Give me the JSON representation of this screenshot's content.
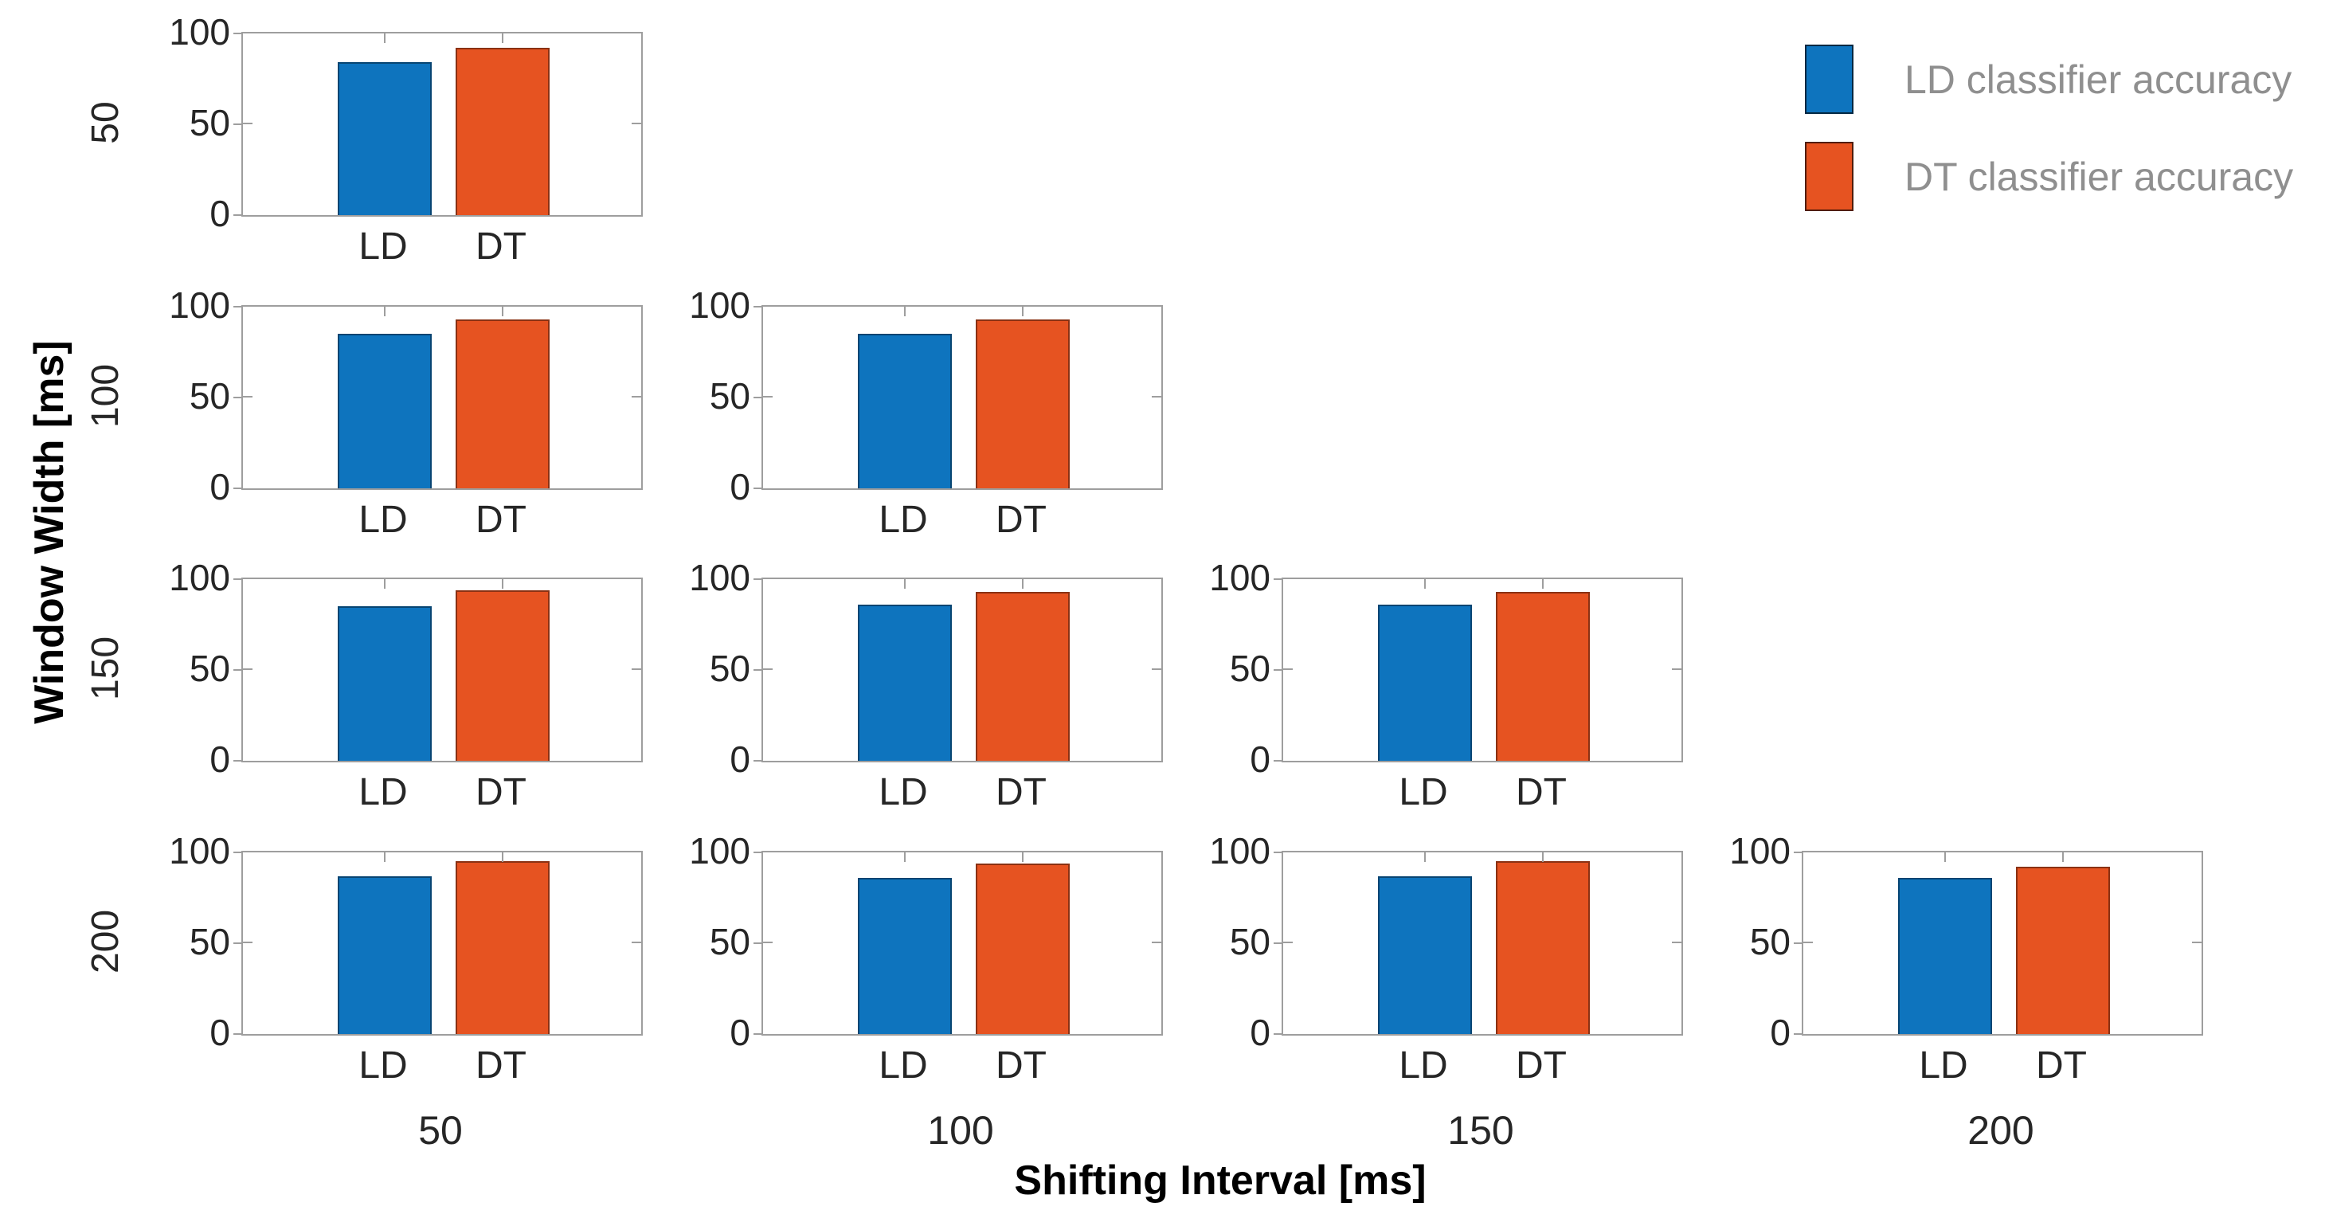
{
  "colors": {
    "ld_bar": "#0e74be",
    "dt_bar": "#e65321",
    "axis_line": "#9e9e9e",
    "tick_text": "#262626",
    "axis_title_text": "#000000",
    "legend_text": "#8f8f8f",
    "background": "#ffffff"
  },
  "legend": {
    "items": [
      {
        "series": "LD",
        "label": "LD classifier accuracy",
        "color": "#0e74be"
      },
      {
        "series": "DT",
        "label": "DT classifier accuracy",
        "color": "#e65321"
      }
    ],
    "position": "top-right"
  },
  "chart_data": {
    "type": "bar",
    "layout": "lower-triangular grid of small multiples",
    "title": "",
    "x_axis_label": "Shifting Interval [ms]",
    "y_axis_label": "Window Width [ms]",
    "row_tick_labels": [
      "50",
      "100",
      "150",
      "200"
    ],
    "col_tick_labels": [
      "50",
      "100",
      "150",
      "200"
    ],
    "categories": [
      "LD",
      "DT"
    ],
    "ylim": [
      0,
      100
    ],
    "yticks": [
      0,
      50,
      100
    ],
    "grid": false,
    "series_colors": {
      "LD": "#0e74be",
      "DT": "#e65321"
    },
    "subplots": [
      {
        "row": 0,
        "col": 0,
        "window_width_ms": 50,
        "shifting_interval_ms": 50,
        "values": {
          "LD": 84,
          "DT": 92
        }
      },
      {
        "row": 1,
        "col": 0,
        "window_width_ms": 100,
        "shifting_interval_ms": 50,
        "values": {
          "LD": 85,
          "DT": 93
        }
      },
      {
        "row": 1,
        "col": 1,
        "window_width_ms": 100,
        "shifting_interval_ms": 100,
        "values": {
          "LD": 85,
          "DT": 93
        }
      },
      {
        "row": 2,
        "col": 0,
        "window_width_ms": 150,
        "shifting_interval_ms": 50,
        "values": {
          "LD": 85,
          "DT": 94
        }
      },
      {
        "row": 2,
        "col": 1,
        "window_width_ms": 150,
        "shifting_interval_ms": 100,
        "values": {
          "LD": 86,
          "DT": 93
        }
      },
      {
        "row": 2,
        "col": 2,
        "window_width_ms": 150,
        "shifting_interval_ms": 150,
        "values": {
          "LD": 86,
          "DT": 93
        }
      },
      {
        "row": 3,
        "col": 0,
        "window_width_ms": 200,
        "shifting_interval_ms": 50,
        "values": {
          "LD": 87,
          "DT": 95
        }
      },
      {
        "row": 3,
        "col": 1,
        "window_width_ms": 200,
        "shifting_interval_ms": 100,
        "values": {
          "LD": 86,
          "DT": 94
        }
      },
      {
        "row": 3,
        "col": 2,
        "window_width_ms": 200,
        "shifting_interval_ms": 150,
        "values": {
          "LD": 87,
          "DT": 95
        }
      },
      {
        "row": 3,
        "col": 3,
        "window_width_ms": 200,
        "shifting_interval_ms": 200,
        "values": {
          "LD": 86,
          "DT": 92
        }
      }
    ]
  }
}
